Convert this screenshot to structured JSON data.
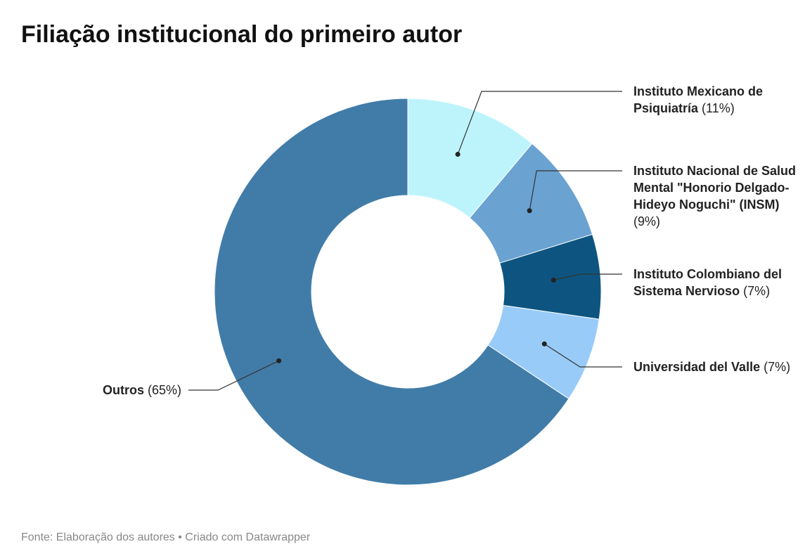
{
  "chart_data": {
    "type": "donut",
    "title": "Filiação institucional do primeiro autor",
    "source": "Fonte: Elaboração dos autores • Criado com Datawrapper",
    "categories": [
      "Instituto Mexicano de Psiquiatría",
      "Instituto Nacional de Salud Mental \"Honorio Delgado-Hideyo Noguchi\" (INSM)",
      "Instituto Colombiano del Sistema Nervioso",
      "Universidad del Valle",
      "Outros"
    ],
    "values": [
      11,
      9,
      7,
      7,
      65
    ],
    "value_labels": [
      "(11%)",
      "(9%)",
      "(7%)",
      "(7%)",
      "(65%)"
    ],
    "colors": [
      "#bdf4fc",
      "#6aa2d1",
      "#0d5580",
      "#99cbf8",
      "#417ca8"
    ]
  }
}
